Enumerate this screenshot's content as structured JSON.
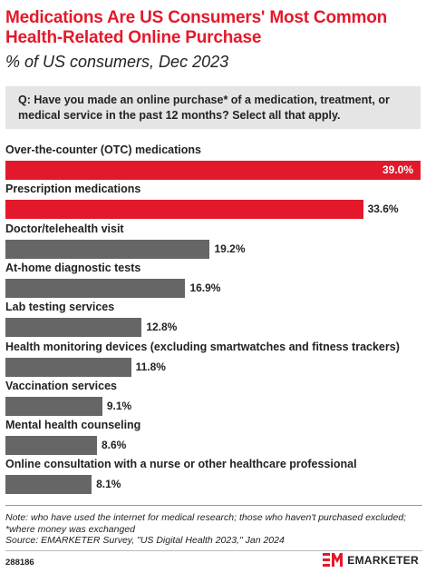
{
  "header": {
    "title": "Medications Are US Consumers' Most Common Health-Related Online Purchase",
    "subtitle": "% of US consumers, Dec 2023"
  },
  "question": "Q: Have you made an online purchase* of a medication, treatment, or medical service in the past 12 months? Select all that apply.",
  "chart_data": {
    "type": "bar",
    "orientation": "horizontal",
    "title": "Medications Are US Consumers' Most Common Health-Related Online Purchase",
    "subtitle": "% of US consumers, Dec 2023",
    "categories": [
      "Over-the-counter (OTC) medications",
      "Prescription medications",
      "Doctor/telehealth visit",
      "At-home diagnostic tests",
      "Lab testing services",
      "Health monitoring devices (excluding smartwatches and fitness trackers)",
      "Vaccination services",
      "Mental health counseling",
      "Online consultation with a nurse or other healthcare professional"
    ],
    "values": [
      39.0,
      33.6,
      19.2,
      16.9,
      12.8,
      11.8,
      9.1,
      8.6,
      8.1
    ],
    "value_labels": [
      "39.0%",
      "33.6%",
      "19.2%",
      "16.9%",
      "12.8%",
      "11.8%",
      "9.1%",
      "8.6%",
      "8.1%"
    ],
    "xlim": [
      0,
      39.0
    ],
    "grid": false,
    "colors": {
      "highlight": "#e3192b",
      "default": "#666666"
    },
    "highlight_count": 2
  },
  "footer": {
    "note": "Note: who have used the internet for medical research; those who haven't purchased excluded; *where money was exchanged",
    "source": "Source: EMARKETER Survey, \"US Digital Health 2023,\" Jan 2024",
    "chart_id": "288186",
    "brand": "EMARKETER"
  }
}
